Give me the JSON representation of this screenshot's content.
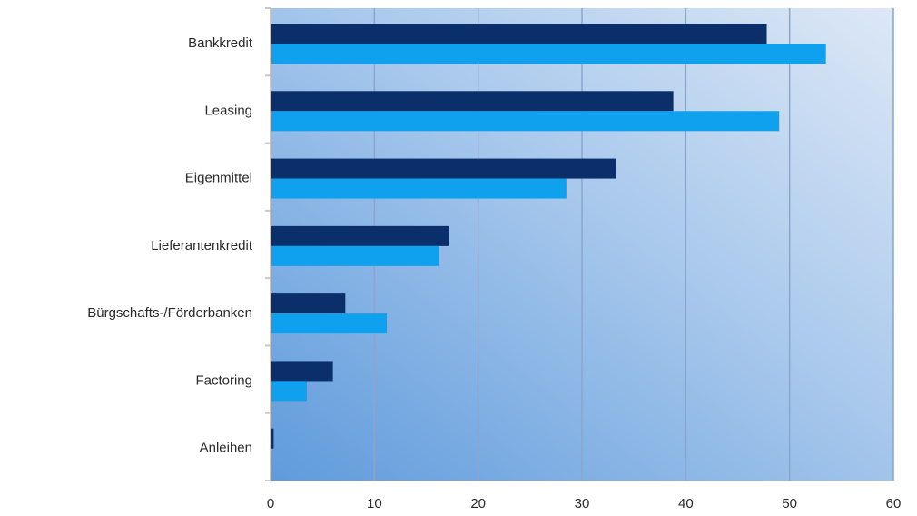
{
  "chart_data": {
    "type": "bar",
    "orientation": "horizontal",
    "title": "",
    "xlabel": "",
    "ylabel": "",
    "categories": [
      "Bankkredit",
      "Leasing",
      "Eigenmittel",
      "Lieferantenkredit",
      "Bürgschafts-/Förderbanken",
      "Factoring",
      "Anleihen"
    ],
    "series": [
      {
        "color": "#0b2f6b",
        "values": [
          47.8,
          38.8,
          33.3,
          17.2,
          7.2,
          6.0,
          0.3
        ]
      },
      {
        "color": "#0fa0ee",
        "values": [
          53.5,
          49.0,
          28.5,
          16.2,
          11.2,
          3.5,
          0.0
        ]
      }
    ],
    "xlim": [
      0,
      60
    ],
    "xticks": [
      0,
      10,
      20,
      30,
      40,
      50,
      60
    ],
    "grid": true,
    "legend": "none",
    "colors": {
      "background_start": "#5f9bdc",
      "background_end": "#dde8f6",
      "gridline": "#8aa6cf",
      "axis": "#c8c8c8",
      "text": "#2a2a2a"
    }
  }
}
